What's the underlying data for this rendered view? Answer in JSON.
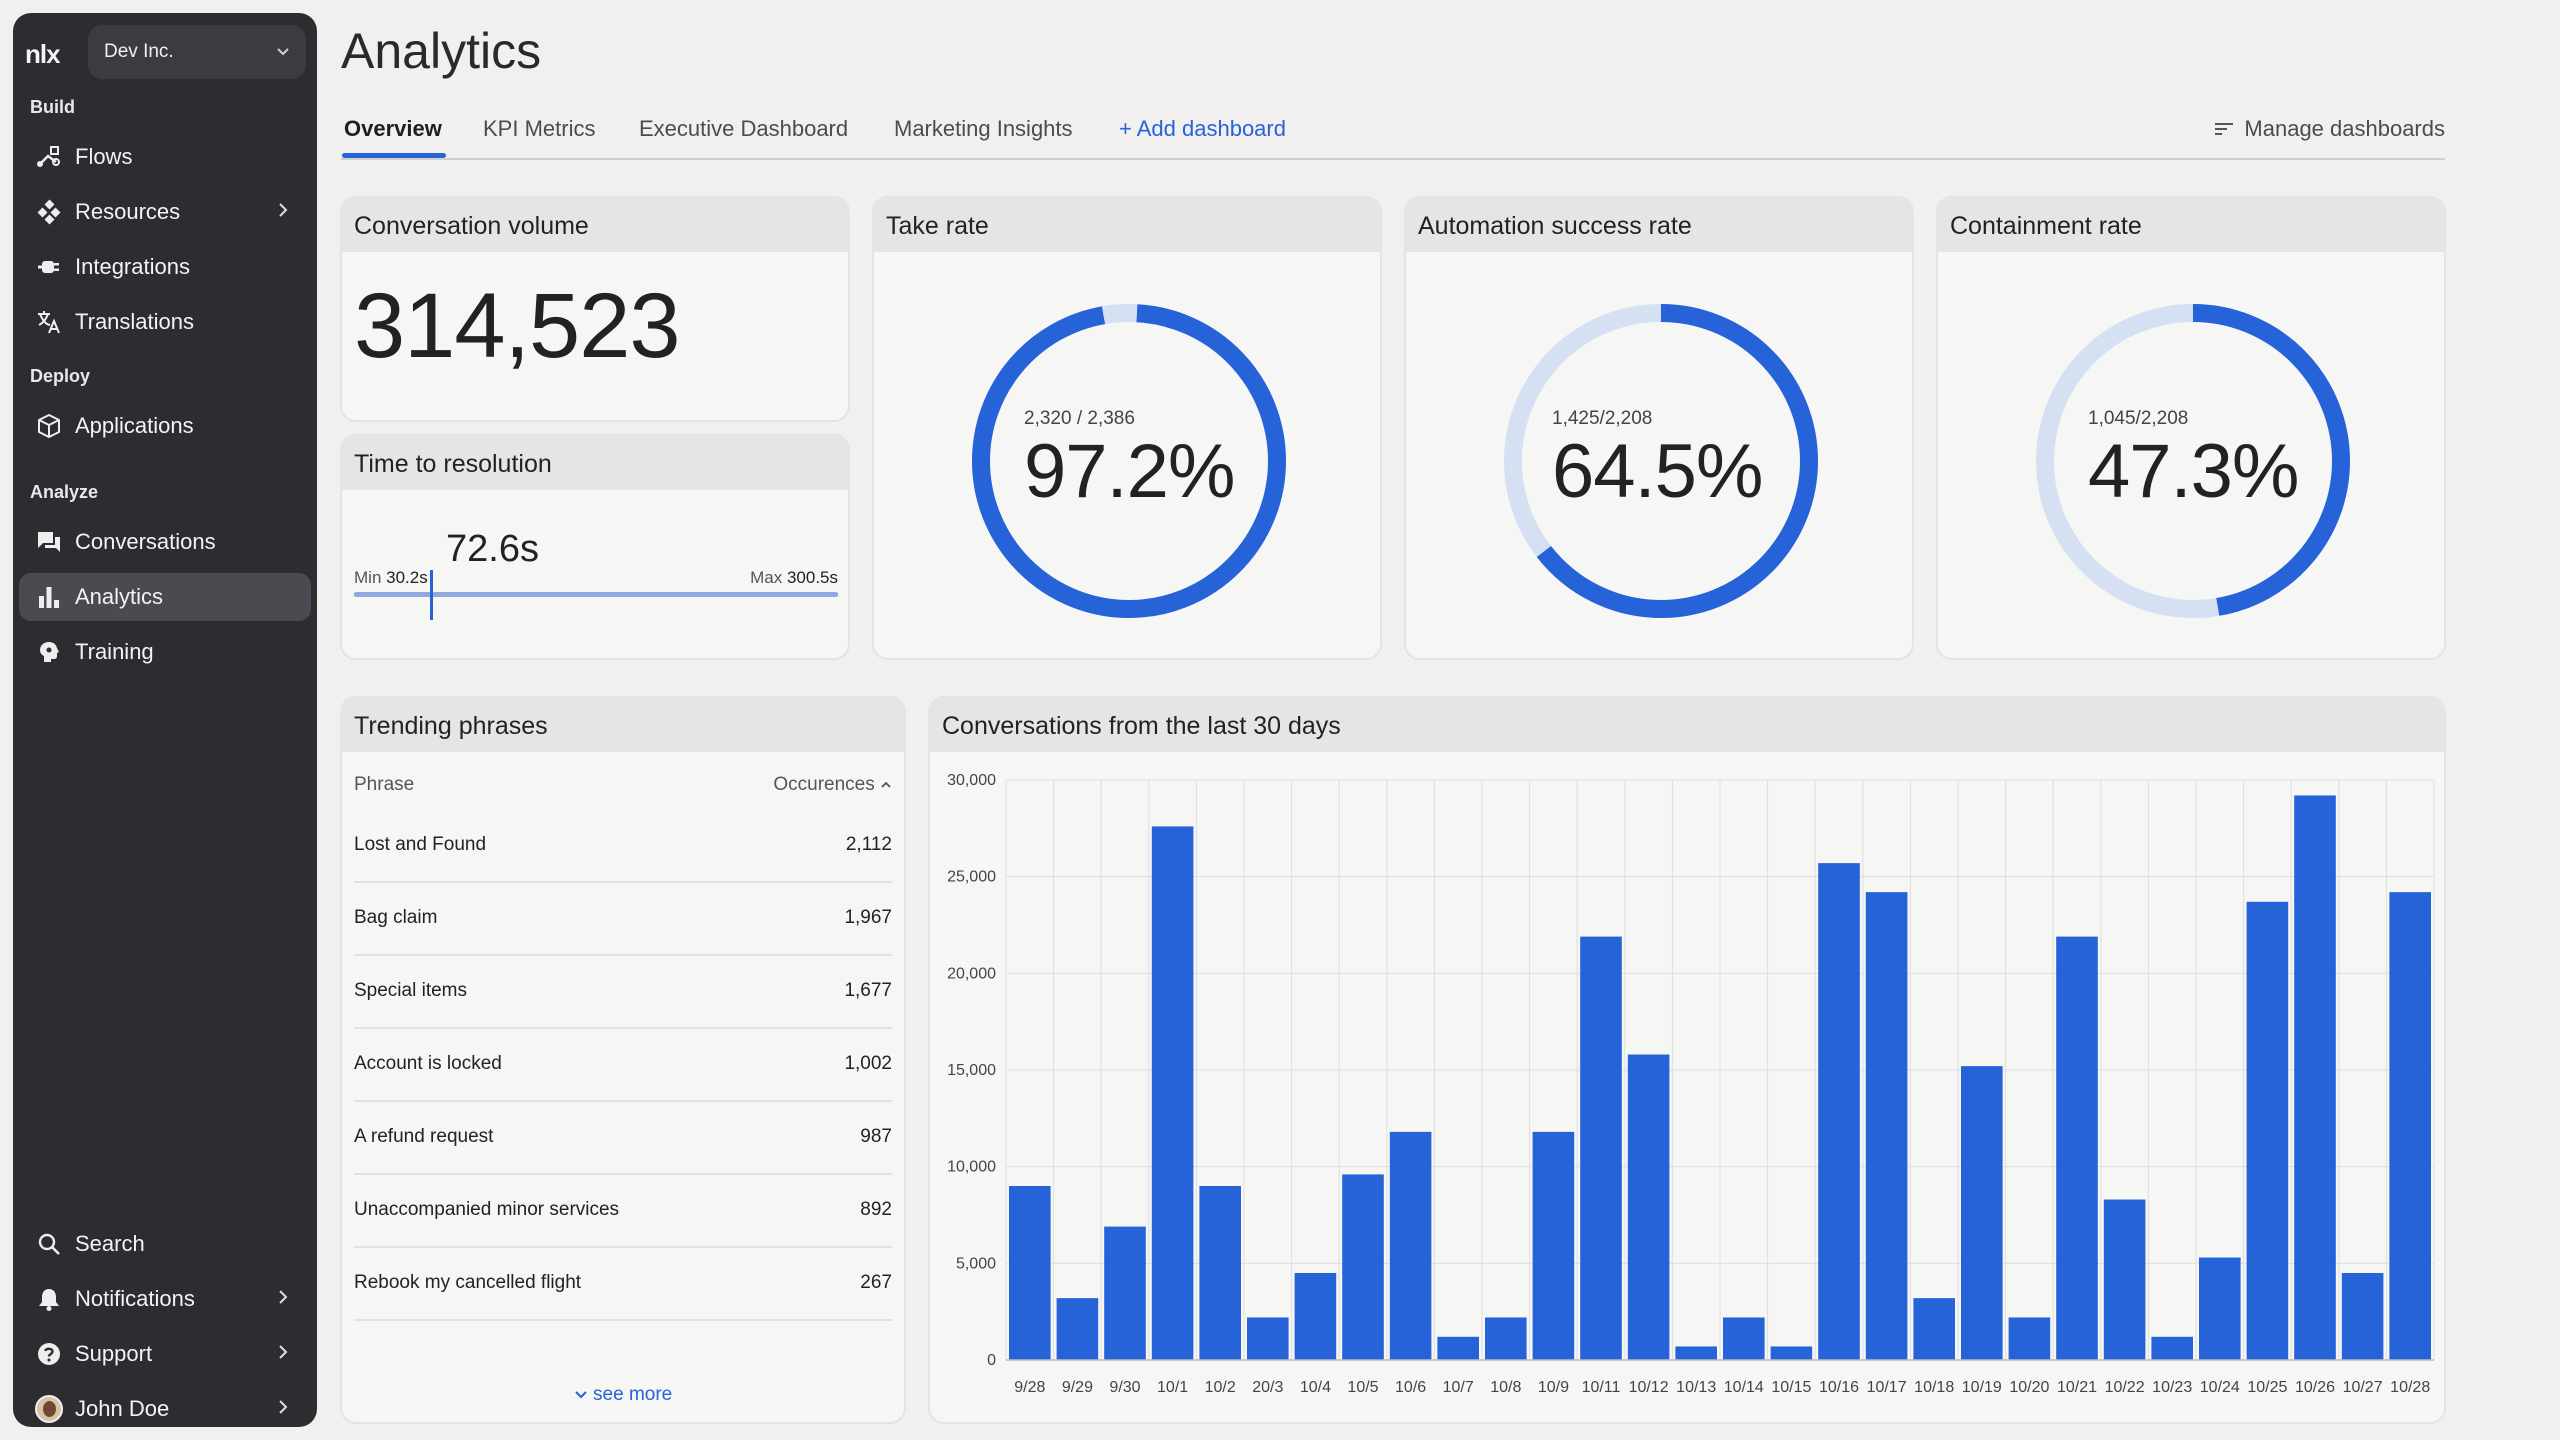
{
  "sidebar": {
    "logo": "nlx",
    "org": "Dev Inc.",
    "sections": {
      "build": "Build",
      "deploy": "Deploy",
      "analyze": "Analyze"
    },
    "items": {
      "flows": "Flows",
      "resources": "Resources",
      "integrations": "Integrations",
      "translations": "Translations",
      "applications": "Applications",
      "conversations": "Conversations",
      "analytics": "Analytics",
      "training": "Training",
      "search": "Search",
      "notifications": "Notifications",
      "support": "Support",
      "user": "John Doe"
    }
  },
  "page": {
    "title": "Analytics"
  },
  "tabs": {
    "overview": "Overview",
    "kpi": "KPI Metrics",
    "executive": "Executive Dashboard",
    "marketing": "Marketing Insights",
    "add": "+ Add dashboard",
    "manage": "Manage dashboards"
  },
  "colors": {
    "accent": "#2663d9",
    "ring_track": "#d6e0f3"
  },
  "volume": {
    "title": "Conversation volume",
    "value": "314,523"
  },
  "resolution": {
    "title": "Time to resolution",
    "value": "72.6s",
    "min_label": "Min",
    "min": "30.2s",
    "max_label": "Max",
    "max": "300.5s",
    "fraction": 0.157
  },
  "take_rate": {
    "title": "Take rate",
    "sub": "2,320 / 2,386",
    "pct": "97.2%",
    "fraction": 0.972
  },
  "automation": {
    "title": "Automation success rate",
    "sub": "1,425/2,208",
    "pct": "64.5%",
    "fraction": 0.645
  },
  "containment": {
    "title": "Containment rate",
    "sub": "1,045/2,208",
    "pct": "47.3%",
    "fraction": 0.473
  },
  "trending": {
    "title": "Trending phrases",
    "col_phrase": "Phrase",
    "col_occ": "Occurences",
    "rows": [
      {
        "phrase": "Lost and Found",
        "count": "2,112"
      },
      {
        "phrase": "Bag claim",
        "count": "1,967"
      },
      {
        "phrase": "Special items",
        "count": "1,677"
      },
      {
        "phrase": "Account is locked",
        "count": "1,002"
      },
      {
        "phrase": "A refund request",
        "count": "987"
      },
      {
        "phrase": "Unaccompanied minor services",
        "count": "892"
      },
      {
        "phrase": "Rebook my cancelled flight",
        "count": "267"
      }
    ],
    "see_more": "see more"
  },
  "chart_title": "Conversations from the last 30 days",
  "chart_data": {
    "type": "bar",
    "title": "Conversations from the last 30 days",
    "categories": [
      "9/28",
      "9/29",
      "9/30",
      "10/1",
      "10/2",
      "20/3",
      "10/4",
      "10/5",
      "10/6",
      "10/7",
      "10/8",
      "10/9",
      "10/11",
      "10/12",
      "10/13",
      "10/14",
      "10/15",
      "10/16",
      "10/17",
      "10/18",
      "10/19",
      "10/20",
      "10/21",
      "10/22",
      "10/23",
      "10/24",
      "10/25",
      "10/26",
      "10/27",
      "10/28"
    ],
    "values": [
      9000,
      3200,
      6900,
      27600,
      9000,
      2200,
      4500,
      9600,
      11800,
      1200,
      2200,
      11800,
      21900,
      15800,
      700,
      2200,
      700,
      25700,
      24200,
      3200,
      15200,
      2200,
      21900,
      8300,
      1200,
      5300,
      23700,
      29200,
      4500,
      24200
    ],
    "yticks": [
      "0",
      "5,000",
      "10,000",
      "15,000",
      "20,000",
      "25,000",
      "30,000"
    ],
    "ylim": [
      0,
      30000
    ],
    "grid": true
  }
}
